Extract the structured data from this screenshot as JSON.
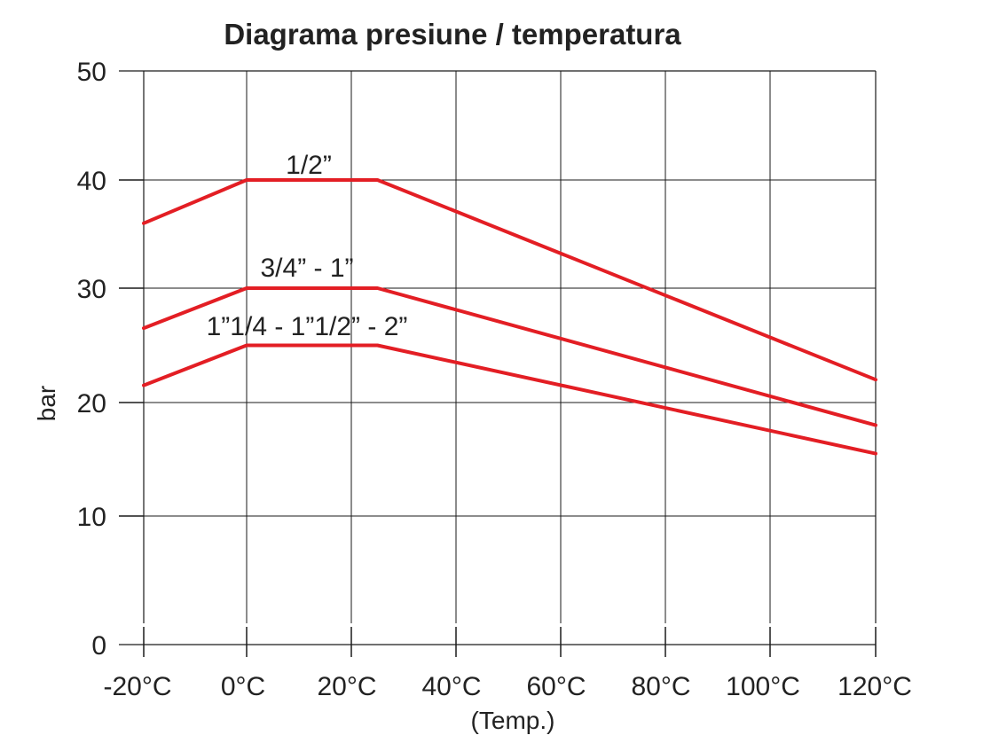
{
  "chart_data": {
    "type": "line",
    "title": "Diagrama presiune / temperatura",
    "xlabel": "(Temp.)",
    "ylabel": "bar",
    "x_tick_labels": [
      "-20°C",
      "0°C",
      "20°C",
      "40°C",
      "60°C",
      "80°C",
      "100°C",
      "120°C"
    ],
    "y_tick_labels": [
      "0",
      "10",
      "20",
      "30",
      "40",
      "50"
    ],
    "xlim": [
      -20,
      120
    ],
    "ylim": [
      0,
      50
    ],
    "grid": true,
    "series": [
      {
        "name": "1/2”",
        "color": "#e31e24",
        "x": [
          -20,
          0,
          25,
          120
        ],
        "y": [
          36,
          40,
          40,
          22
        ]
      },
      {
        "name": "3/4” - 1”",
        "color": "#e31e24",
        "x": [
          -20,
          0,
          25,
          120
        ],
        "y": [
          26.5,
          30,
          30,
          18
        ]
      },
      {
        "name": "1”1/4 - 1”1/2” - 2”",
        "color": "#e31e24",
        "x": [
          -20,
          0,
          25,
          120
        ],
        "y": [
          21.5,
          25,
          25,
          15.5
        ]
      }
    ]
  }
}
